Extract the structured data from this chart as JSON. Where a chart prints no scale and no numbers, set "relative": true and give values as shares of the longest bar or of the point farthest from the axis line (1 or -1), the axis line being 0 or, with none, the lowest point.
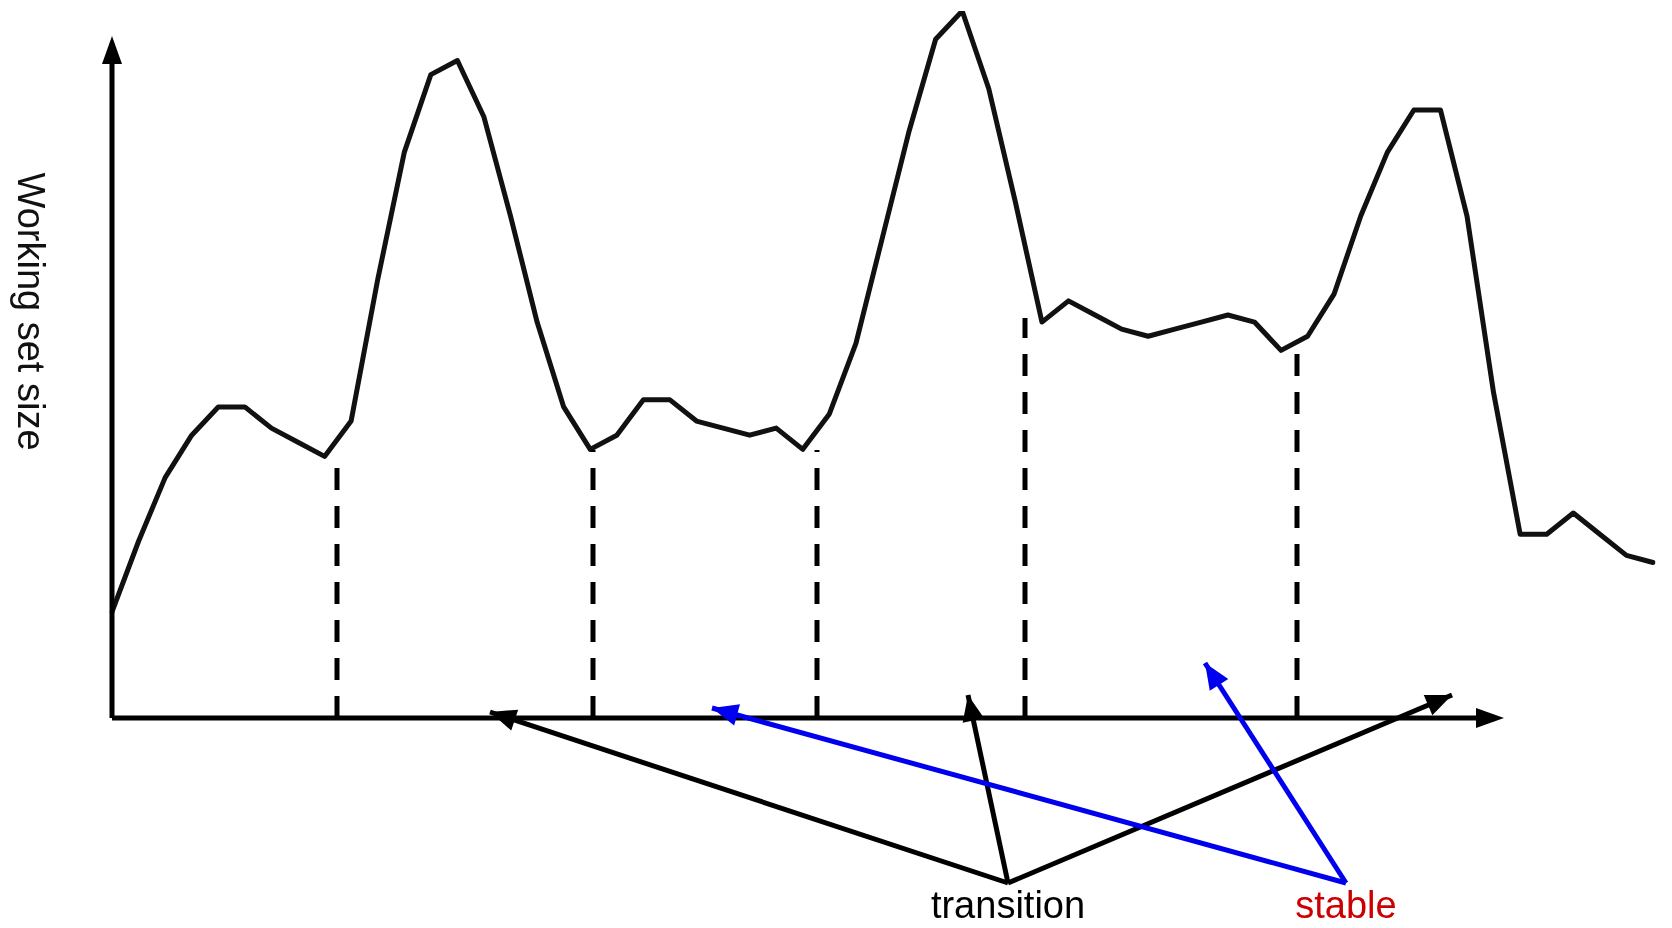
{
  "chart_data": {
    "type": "line",
    "ylabel": "Working set size",
    "relative": true,
    "tick_labels": false,
    "legend": false,
    "marker": "none",
    "line_style": "solid",
    "categories": [
      null,
      null,
      null,
      null,
      null,
      null,
      null,
      null,
      null,
      null,
      null,
      null,
      null,
      null,
      null,
      null,
      null,
      null,
      null,
      null,
      null,
      null,
      null,
      null,
      null,
      null,
      null,
      null,
      null,
      null,
      null,
      null,
      null,
      null,
      null,
      null,
      null,
      null,
      null,
      null,
      null,
      null,
      null,
      null,
      null,
      null,
      null,
      null,
      null,
      null,
      null,
      null,
      null,
      null,
      null,
      null,
      null,
      null,
      null
    ],
    "series": [
      {
        "color": "#111111",
        "values": [
          0.15,
          0.25,
          0.34,
          0.4,
          0.44,
          0.44,
          0.41,
          0.39,
          0.37,
          0.42,
          0.62,
          0.8,
          0.91,
          0.93,
          0.85,
          0.71,
          0.56,
          0.44,
          0.38,
          0.4,
          0.45,
          0.45,
          0.42,
          0.41,
          0.4,
          0.41,
          0.38,
          0.43,
          0.53,
          0.68,
          0.83,
          0.96,
          1,
          0.89,
          0.73,
          0.56,
          0.59,
          0.57,
          0.55,
          0.54,
          0.55,
          0.56,
          0.57,
          0.56,
          0.52,
          0.54,
          0.6,
          0.71,
          0.8,
          0.86,
          0.86,
          0.71,
          0.46,
          0.26,
          0.26,
          0.29,
          0.26,
          0.23,
          0.22
        ]
      }
    ],
    "annotations": [
      "transition",
      "stable"
    ]
  }
}
